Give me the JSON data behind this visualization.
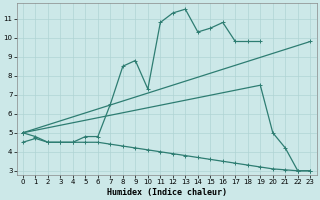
{
  "xlabel": "Humidex (Indice chaleur)",
  "bg_color": "#cce8e8",
  "line_color": "#2e7d72",
  "grid_color": "#b0d4d4",
  "xlim": [
    -0.5,
    23.5
  ],
  "ylim": [
    2.8,
    11.8
  ],
  "yticks": [
    3,
    4,
    5,
    6,
    7,
    8,
    9,
    10,
    11
  ],
  "xticks": [
    0,
    1,
    2,
    3,
    4,
    5,
    6,
    7,
    8,
    9,
    10,
    11,
    12,
    13,
    14,
    15,
    16,
    17,
    18,
    19,
    20,
    21,
    22,
    23
  ],
  "line1_x": [
    0,
    1,
    2,
    3,
    4,
    5,
    6,
    7,
    8,
    9,
    10,
    11,
    12,
    13,
    14,
    15,
    16,
    17,
    18,
    19
  ],
  "line1_y": [
    5.0,
    4.8,
    4.5,
    4.5,
    4.5,
    4.8,
    4.8,
    6.5,
    8.5,
    8.8,
    7.3,
    10.8,
    11.3,
    11.5,
    10.3,
    10.5,
    10.8,
    9.8,
    9.8,
    9.8
  ],
  "line2_x": [
    0,
    19,
    20,
    21,
    22,
    23
  ],
  "line2_y": [
    5.0,
    7.5,
    5.0,
    4.2,
    3.0,
    3.0
  ],
  "line3_x": [
    0,
    23
  ],
  "line3_y": [
    5.0,
    9.8
  ],
  "line4_x": [
    0,
    1,
    2,
    3,
    4,
    5,
    6,
    7,
    8,
    9,
    10,
    11,
    12,
    13,
    14,
    15,
    16,
    17,
    18,
    19,
    20,
    21,
    22,
    23
  ],
  "line4_y": [
    4.5,
    4.7,
    4.5,
    4.5,
    4.5,
    4.5,
    4.5,
    4.4,
    4.3,
    4.2,
    4.1,
    4.0,
    3.9,
    3.8,
    3.7,
    3.6,
    3.5,
    3.4,
    3.3,
    3.2,
    3.1,
    3.05,
    3.0,
    3.0
  ]
}
